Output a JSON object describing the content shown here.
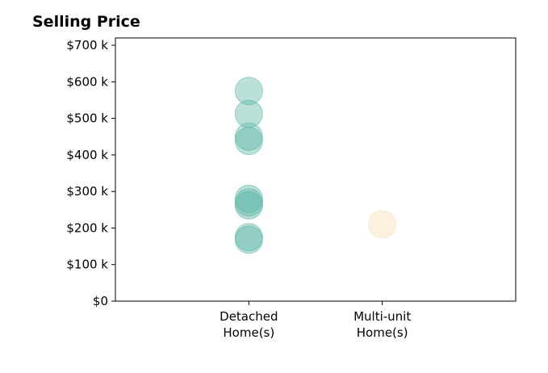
{
  "chart_data": {
    "type": "scatter",
    "title": "Selling Price",
    "xlabel": "",
    "ylabel": "",
    "categories": [
      "Detached\nHome(s)",
      "Multi-unit\nHome(s)"
    ],
    "xlim": [
      -1,
      2
    ],
    "ylim": [
      0,
      720000
    ],
    "yticks": [
      0,
      100000,
      200000,
      300000,
      400000,
      500000,
      600000,
      700000
    ],
    "ytick_labels": [
      "$0",
      "$100 k",
      "$200 k",
      "$300 k",
      "$400 k",
      "$500 k",
      "$600 k",
      "$700 k"
    ],
    "grid": false,
    "series": [
      {
        "category_index": 0,
        "color": "#5ab4a4",
        "values": [
          575000,
          512000,
          450000,
          438000,
          280000,
          270000,
          262000,
          175000,
          168000
        ]
      },
      {
        "category_index": 1,
        "color": "#f5deb0",
        "values": [
          210000
        ]
      }
    ]
  }
}
